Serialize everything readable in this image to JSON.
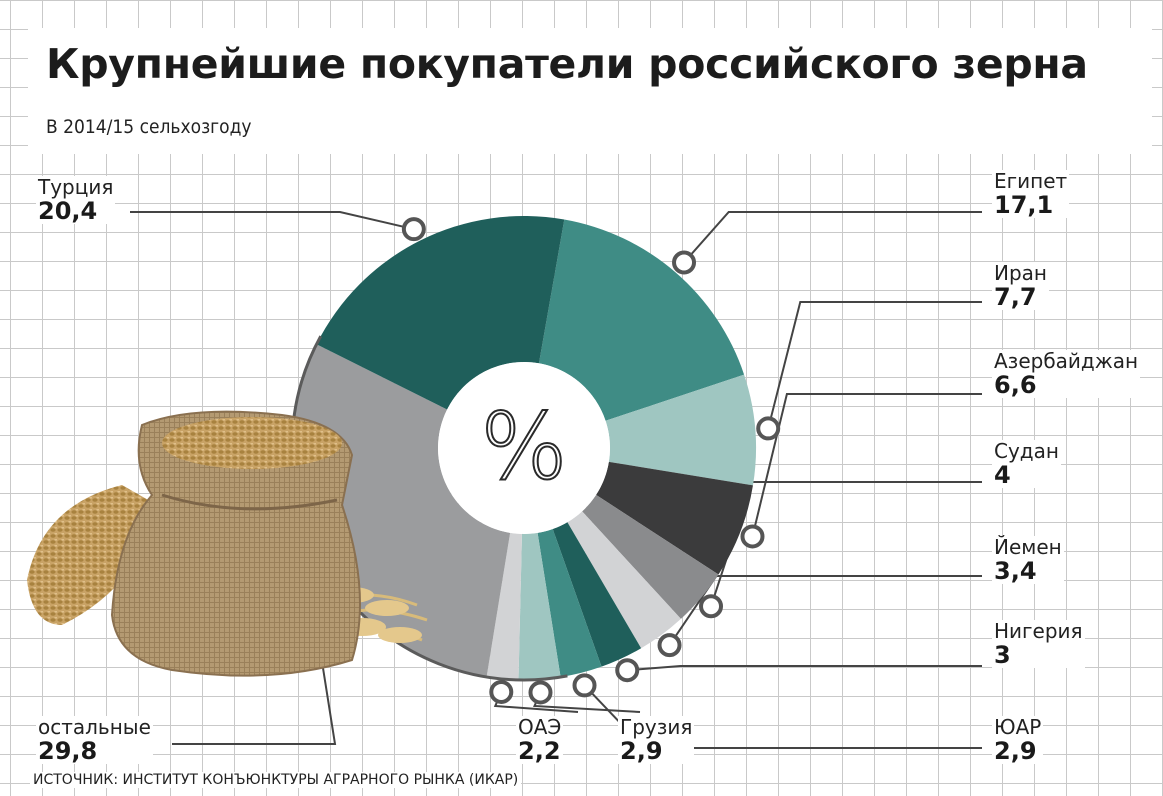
{
  "title": "Крупнейшие покупатели российского зерна",
  "subtitle": "В 2014/15 сельхозгоду",
  "center_symbol": "%",
  "source": "ИСТОЧНИК: ИНСТИТУТ КОНЪЮНКТУРЫ АГРАРНОГО РЫНКА (ИКАР)",
  "chart_data": {
    "type": "pie",
    "title": "Крупнейшие покупатели российского зерна",
    "subtitle": "В 2014/15 сельхозгоду",
    "unit": "%",
    "categories": [
      "Египет",
      "Иран",
      "Азербайджан",
      "Судан",
      "Йемен",
      "Нигерия",
      "ЮАР",
      "Грузия",
      "ОАЭ",
      "остальные",
      "Турция"
    ],
    "values": [
      17.1,
      7.7,
      6.6,
      4,
      3.4,
      3,
      2.9,
      2.9,
      2.2,
      29.8,
      20.4
    ],
    "value_labels": [
      "17,1",
      "7,7",
      "6,6",
      "4",
      "3,4",
      "3",
      "2,9",
      "2,9",
      "2,2",
      "29,8",
      "20,4"
    ],
    "colors": [
      "#3f8c85",
      "#9fc6c1",
      "#3b3b3c",
      "#8a8b8d",
      "#d2d3d5",
      "#1f5f5b",
      "#3f8c85",
      "#9fc6c1",
      "#d2d3d5",
      "#9b9c9e",
      "#1f5f5b"
    ],
    "legend": "labels-around"
  }
}
